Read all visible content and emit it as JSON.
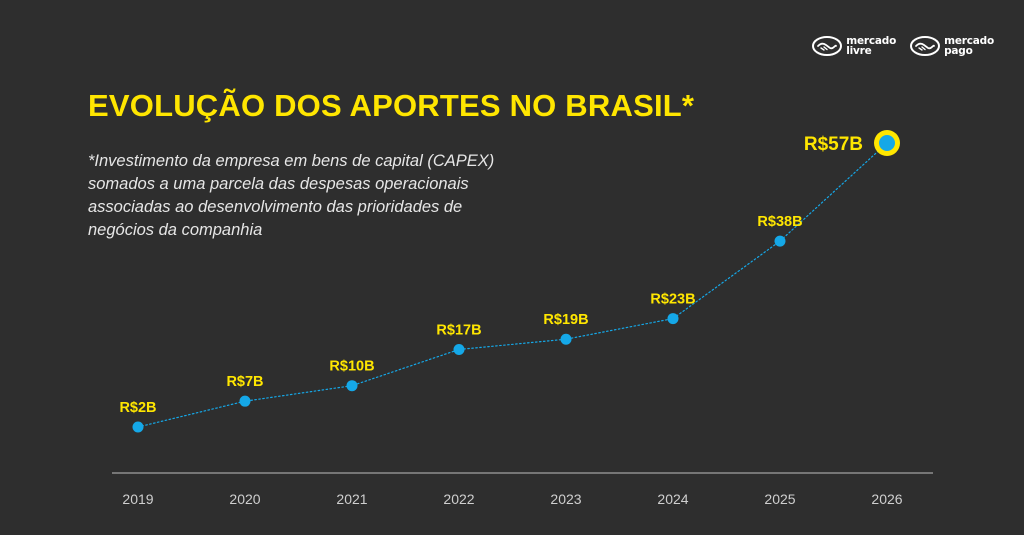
{
  "brand": {
    "logos": [
      {
        "line1": "mercado",
        "line2": "livre"
      },
      {
        "line1": "mercado",
        "line2": "pago"
      }
    ]
  },
  "header": {
    "title": "EVOLUÇÃO DOS APORTES NO BRASIL*",
    "subtitle": "*Investimento da empresa em bens de capital (CAPEX) somados a uma parcela das despesas operacionais associadas ao desenvolvimento das prioridades de negócios da companhia"
  },
  "colors": {
    "background": "#2e2e2e",
    "accent_yellow": "#ffe600",
    "point_blue": "#15a8e8",
    "axis": "#bdbdbd"
  },
  "chart_data": {
    "type": "line",
    "x": [
      "2019",
      "2020",
      "2021",
      "2022",
      "2023",
      "2024",
      "2025",
      "2026"
    ],
    "values": [
      2,
      7,
      10,
      17,
      19,
      23,
      38,
      57
    ],
    "data_labels": [
      "R$2B",
      "R$7B",
      "R$10B",
      "R$17B",
      "R$19B",
      "R$23B",
      "R$38B",
      "R$57B"
    ],
    "highlight_index": 7,
    "unit": "R$ bilhões",
    "grid": false,
    "line_style": "dotted"
  }
}
